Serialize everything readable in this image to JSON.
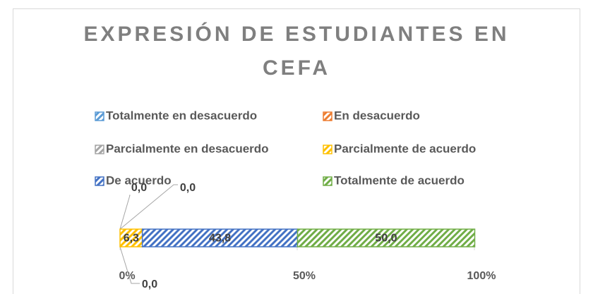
{
  "chart_data": {
    "type": "stacked_bar_100",
    "orientation": "horizontal",
    "title_lines": [
      "EXPRESIÓN DE ESTUDIANTES EN",
      "CEFA"
    ],
    "categories": [
      null
    ],
    "series": [
      {
        "name": "Totalmente en desacuerdo",
        "color": "#5b9bd5",
        "values": [
          0.0
        ],
        "value_labels": [
          "0,0"
        ]
      },
      {
        "name": "En desacuerdo",
        "color": "#ed7d31",
        "values": [
          0.0
        ],
        "value_labels": [
          "0,0"
        ]
      },
      {
        "name": "Parcialmente en desacuerdo",
        "color": "#a5a5a5",
        "values": [
          0.0
        ],
        "value_labels": [
          "0,0"
        ]
      },
      {
        "name": "Parcialmente de acuerdo",
        "color": "#ffc000",
        "values": [
          6.3
        ],
        "value_labels": [
          "6,3"
        ]
      },
      {
        "name": "De acuerdo",
        "color": "#4472c4",
        "values": [
          43.8
        ],
        "value_labels": [
          "43,8"
        ]
      },
      {
        "name": "Totalmente de acuerdo",
        "color": "#70ad47",
        "values": [
          50.0
        ],
        "value_labels": [
          "50,0"
        ]
      }
    ],
    "xlim": [
      0,
      100
    ],
    "xticks": [
      {
        "value": 0,
        "label": "0%"
      },
      {
        "value": 50,
        "label": "50%"
      },
      {
        "value": 100,
        "label": "100%"
      }
    ],
    "legend": "top"
  }
}
